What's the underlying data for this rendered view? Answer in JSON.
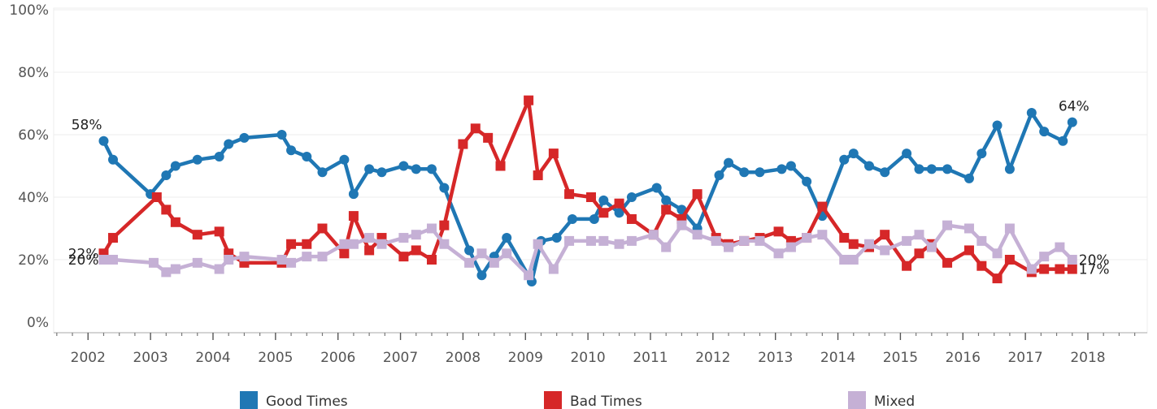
{
  "chart_data": {
    "type": "line",
    "ylim": [
      0,
      100
    ],
    "y_ticks": [
      0,
      20,
      40,
      60,
      80,
      100
    ],
    "y_tick_labels": [
      "0%",
      "20%",
      "40%",
      "60%",
      "80%",
      "100%"
    ],
    "xlim": [
      2001.45,
      2018.95
    ],
    "x_ticks": [
      2002,
      2003,
      2004,
      2005,
      2006,
      2007,
      2008,
      2009,
      2010,
      2011,
      2012,
      2013,
      2014,
      2015,
      2016,
      2017,
      2018
    ],
    "x_tick_labels": [
      "2002",
      "2003",
      "2004",
      "2005",
      "2006",
      "2007",
      "2008",
      "2009",
      "2010",
      "2011",
      "2012",
      "2013",
      "2014",
      "2015",
      "2016",
      "2017",
      "2018"
    ],
    "grid": true,
    "legend_position": "bottom",
    "series": [
      {
        "name": "Good Times",
        "color": "#1f77b4",
        "marker": "circle",
        "x": [
          2002.25,
          2002.4,
          2003.0,
          2003.25,
          2003.4,
          2003.75,
          2004.1,
          2004.25,
          2004.5,
          2005.1,
          2005.25,
          2005.5,
          2005.75,
          2006.1,
          2006.25,
          2006.5,
          2006.7,
          2007.05,
          2007.25,
          2007.5,
          2007.7,
          2008.1,
          2008.3,
          2008.5,
          2008.7,
          2009.1,
          2009.25,
          2009.5,
          2009.75,
          2010.1,
          2010.25,
          2010.5,
          2010.7,
          2011.1,
          2011.25,
          2011.5,
          2011.75,
          2012.1,
          2012.25,
          2012.5,
          2012.75,
          2013.1,
          2013.25,
          2013.5,
          2013.75,
          2014.1,
          2014.25,
          2014.5,
          2014.75,
          2015.1,
          2015.3,
          2015.5,
          2015.75,
          2016.1,
          2016.3,
          2016.55,
          2016.75,
          2017.1,
          2017.3,
          2017.6,
          2017.75
        ],
        "values": [
          58,
          52,
          41,
          47,
          50,
          52,
          53,
          57,
          59,
          60,
          55,
          53,
          48,
          52,
          41,
          49,
          48,
          50,
          49,
          49,
          43,
          23,
          15,
          21,
          27,
          13,
          26,
          27,
          33,
          33,
          39,
          35,
          40,
          43,
          39,
          36,
          30,
          47,
          51,
          48,
          48,
          49,
          50,
          45,
          34,
          52,
          54,
          50,
          48,
          54,
          49,
          49,
          49,
          46,
          54,
          63,
          49,
          67,
          61,
          58,
          64
        ]
      },
      {
        "name": "Bad Times",
        "color": "#d62728",
        "marker": "square",
        "x": [
          2002.25,
          2002.4,
          2003.1,
          2003.25,
          2003.4,
          2003.75,
          2004.1,
          2004.25,
          2004.5,
          2005.1,
          2005.25,
          2005.5,
          2005.75,
          2006.1,
          2006.25,
          2006.5,
          2006.7,
          2007.05,
          2007.25,
          2007.5,
          2007.7,
          2008.0,
          2008.2,
          2008.4,
          2008.6,
          2009.05,
          2009.2,
          2009.45,
          2009.7,
          2010.05,
          2010.25,
          2010.5,
          2010.7,
          2011.05,
          2011.25,
          2011.5,
          2011.75,
          2012.05,
          2012.25,
          2012.5,
          2012.75,
          2013.05,
          2013.25,
          2013.5,
          2013.75,
          2014.1,
          2014.25,
          2014.5,
          2014.75,
          2015.1,
          2015.3,
          2015.5,
          2015.75,
          2016.1,
          2016.3,
          2016.55,
          2016.75,
          2017.1,
          2017.3,
          2017.55,
          2017.75
        ],
        "values": [
          22,
          27,
          40,
          36,
          32,
          28,
          29,
          22,
          19,
          19,
          25,
          25,
          30,
          22,
          34,
          23,
          27,
          21,
          23,
          20,
          31,
          57,
          62,
          59,
          50,
          71,
          47,
          54,
          41,
          40,
          35,
          38,
          33,
          28,
          36,
          33,
          41,
          27,
          25,
          26,
          27,
          29,
          26,
          27,
          37,
          27,
          25,
          24,
          28,
          18,
          22,
          25,
          19,
          23,
          18,
          14,
          20,
          16,
          17,
          17,
          17
        ]
      },
      {
        "name": "Mixed",
        "color": "#c5b0d5",
        "marker": "square",
        "x": [
          2002.25,
          2002.4,
          2003.05,
          2003.25,
          2003.4,
          2003.75,
          2004.1,
          2004.25,
          2004.5,
          2005.1,
          2005.25,
          2005.5,
          2005.75,
          2006.1,
          2006.25,
          2006.5,
          2006.7,
          2007.05,
          2007.25,
          2007.5,
          2007.7,
          2008.1,
          2008.3,
          2008.5,
          2008.7,
          2009.05,
          2009.2,
          2009.45,
          2009.7,
          2010.05,
          2010.25,
          2010.5,
          2010.7,
          2011.05,
          2011.25,
          2011.5,
          2011.75,
          2012.05,
          2012.25,
          2012.5,
          2012.75,
          2013.05,
          2013.25,
          2013.5,
          2013.75,
          2014.1,
          2014.25,
          2014.5,
          2014.75,
          2015.1,
          2015.3,
          2015.5,
          2015.75,
          2016.1,
          2016.3,
          2016.55,
          2016.75,
          2017.1,
          2017.3,
          2017.55,
          2017.75
        ],
        "values": [
          20,
          20,
          19,
          16,
          17,
          19,
          17,
          20,
          21,
          20,
          19,
          21,
          21,
          25,
          25,
          27,
          25,
          27,
          28,
          30,
          25,
          19,
          22,
          19,
          22,
          15,
          25,
          17,
          26,
          26,
          26,
          25,
          26,
          28,
          24,
          31,
          28,
          26,
          24,
          26,
          26,
          22,
          24,
          27,
          28,
          20,
          20,
          25,
          23,
          26,
          28,
          24,
          31,
          30,
          26,
          22,
          30,
          17,
          21,
          24,
          20
        ]
      }
    ],
    "annotations": [
      {
        "text": "58%",
        "series": "Good Times",
        "x": 2002.25,
        "value": 58,
        "side": "left"
      },
      {
        "text": "22%",
        "series": "Bad Times",
        "x": 2002.25,
        "value": 22,
        "side": "left"
      },
      {
        "text": "20%",
        "series": "Mixed",
        "x": 2002.25,
        "value": 20,
        "side": "left"
      },
      {
        "text": "64%",
        "series": "Good Times",
        "x": 2017.75,
        "value": 64,
        "side": "right"
      },
      {
        "text": "20%",
        "series": "Mixed",
        "x": 2017.75,
        "value": 20,
        "side": "right"
      },
      {
        "text": "17%",
        "series": "Bad Times",
        "x": 2017.75,
        "value": 17,
        "side": "right"
      }
    ]
  }
}
